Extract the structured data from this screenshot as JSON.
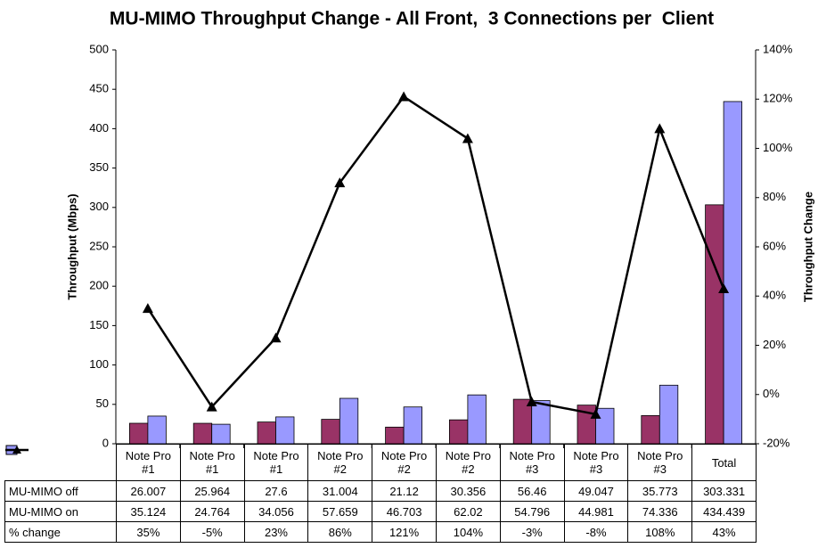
{
  "chart_data": {
    "type": "bar_line",
    "title": "MU-MIMO Throughput Change - All Front,  3 Connections per  Client",
    "y_label": "Throughput (Mbps)",
    "y2_label": "Throughput Change",
    "categories": [
      "Note Pro #1",
      "Note Pro #1",
      "Note Pro #1",
      "Note Pro #2",
      "Note Pro #2",
      "Note Pro #2",
      "Note Pro #3",
      "Note Pro #3",
      "Note Pro #3",
      "Total"
    ],
    "series": [
      {
        "name": "MU-MIMO off",
        "type": "bar",
        "color": "#993366",
        "values": [
          26.007,
          25.964,
          27.6,
          31.004,
          21.12,
          30.356,
          56.46,
          49.047,
          35.773,
          303.331
        ]
      },
      {
        "name": "MU-MIMO on",
        "type": "bar",
        "color": "#9999ff",
        "values": [
          35.124,
          24.764,
          34.056,
          57.659,
          46.703,
          62.02,
          54.796,
          44.981,
          74.336,
          434.439
        ]
      },
      {
        "name": "% change",
        "type": "line",
        "axis": "y2",
        "color": "#000000",
        "values": [
          35,
          -5,
          23,
          86,
          121,
          104,
          -3,
          -8,
          108,
          43
        ],
        "value_labels": [
          "35%",
          "-5%",
          "23%",
          "86%",
          "121%",
          "104%",
          "-3%",
          "-8%",
          "108%",
          "43%"
        ]
      }
    ],
    "ylim": [
      0,
      500
    ],
    "yticks": [
      0,
      50,
      100,
      150,
      200,
      250,
      300,
      350,
      400,
      450,
      500
    ],
    "y2lim": [
      -20,
      140
    ],
    "y2ticks": [
      {
        "value": -20,
        "label": "-20%"
      },
      {
        "value": 0,
        "label": "0%"
      },
      {
        "value": 20,
        "label": "20%"
      },
      {
        "value": 40,
        "label": "40%"
      },
      {
        "value": 60,
        "label": "60%"
      },
      {
        "value": 80,
        "label": "80%"
      },
      {
        "value": 100,
        "label": "100%"
      },
      {
        "value": 120,
        "label": "120%"
      },
      {
        "value": 140,
        "label": "140%"
      }
    ],
    "grid": false
  }
}
